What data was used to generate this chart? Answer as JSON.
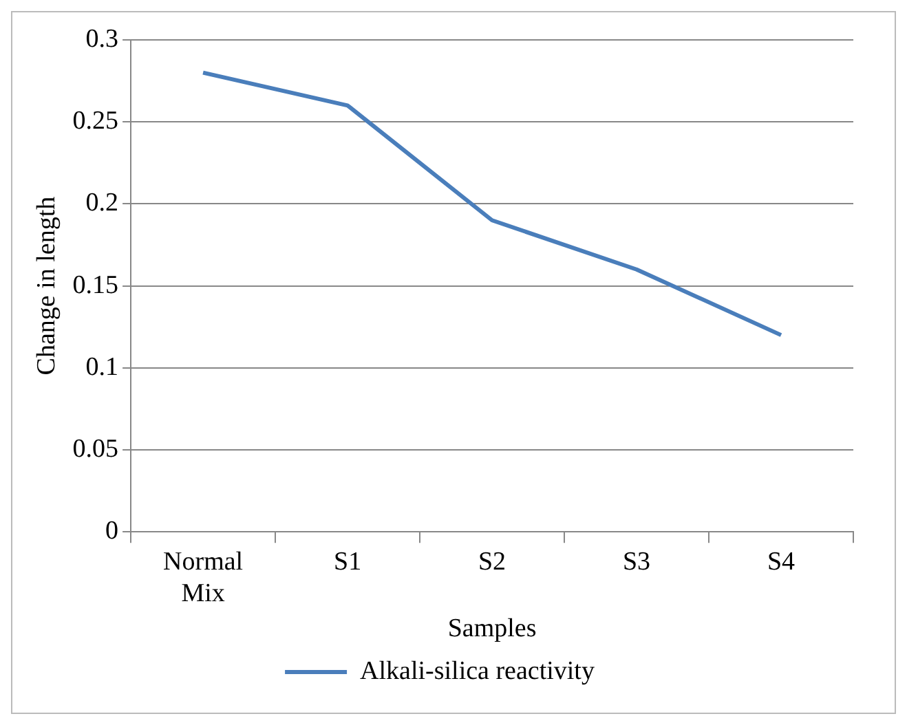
{
  "chart_data": {
    "type": "line",
    "xlabel": "Samples",
    "ylabel": "Change in length",
    "categories": [
      "Normal Mix",
      "S1",
      "S2",
      "S3",
      "S4"
    ],
    "series": [
      {
        "name": "Alkali-silica reactivity",
        "color": "#4a7ebb",
        "values": [
          0.28,
          0.26,
          0.19,
          0.16,
          0.12
        ]
      }
    ],
    "ylim": [
      0,
      0.3
    ],
    "yticks": [
      0,
      0.05,
      0.1,
      0.15,
      0.2,
      0.25,
      0.3
    ],
    "grid": "y",
    "legend": "bottom",
    "marker": "none"
  }
}
